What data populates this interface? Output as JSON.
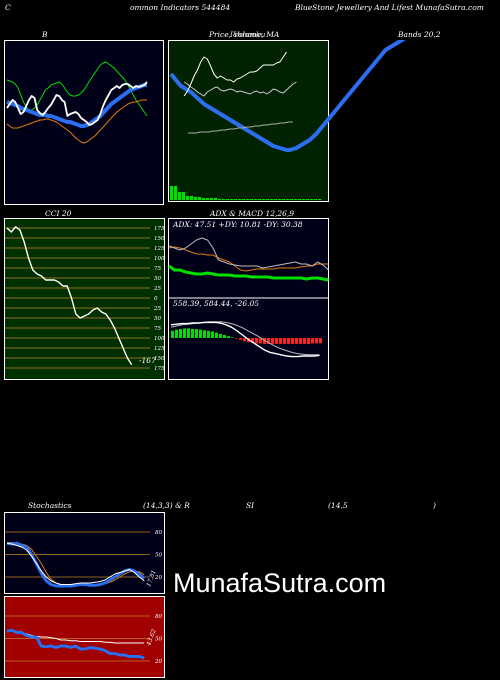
{
  "header": {
    "left": "C",
    "mid": "ommon  Indicators 544484",
    "right": "BlueStone  Jewellery And Lifest MunafaSutra.com"
  },
  "top_labels": {
    "b": "B",
    "price": "Price,  Volume,  MA",
    "price_overlay": "Ichimoku",
    "bands": "Bands 20,2"
  },
  "mid_labels": {
    "cci": "CCI 20",
    "adx": "ADX  & MACD 12,26,9"
  },
  "bottom_labels": {
    "stoch": "Stochastics",
    "params": "(14,3,3) & R",
    "si": "SI",
    "rsi_params": "(14,5",
    "close_paren": ")"
  },
  "watermark": "MunafaSutra.com",
  "colors": {
    "bg": "#000000",
    "navy": "#000018",
    "price_bg": "#002200",
    "cci_bg": "#003000",
    "rsi_bg": "#a00000",
    "blue": "#2b6ef0",
    "green": "#00e000",
    "orange": "#e07a10",
    "white": "#ffffff",
    "red": "#ff2020"
  },
  "chart_data": [
    {
      "type": "line",
      "name": "bollinger",
      "title": "B ... Bands 20,2",
      "series": [
        {
          "values": [
            40,
            41,
            42,
            44,
            48,
            55,
            62,
            67,
            70,
            70,
            68,
            65,
            60,
            55,
            50,
            48,
            45,
            44,
            43,
            42,
            44,
            48,
            52,
            55,
            56,
            56,
            55,
            53,
            50,
            46,
            41,
            37,
            33,
            29,
            25,
            23,
            22,
            24,
            26,
            28,
            31,
            34,
            37,
            40,
            45,
            50,
            55,
            60,
            64,
            68,
            72,
            76
          ]
        },
        {
          "values": [
            62,
            63,
            64,
            65,
            66,
            68,
            69,
            70,
            71,
            72,
            73,
            74,
            75,
            75,
            75,
            76,
            76,
            77,
            78,
            79,
            80,
            81,
            82,
            82,
            83,
            84,
            85,
            86,
            86,
            85,
            84,
            82,
            80,
            78,
            76,
            73,
            70,
            67,
            64,
            62,
            60,
            58,
            56,
            54,
            52,
            50,
            49,
            48,
            47,
            46,
            45,
            45
          ]
        },
        {
          "values": [
            84,
            86,
            88,
            88,
            88,
            87,
            86,
            85,
            84,
            83,
            82,
            81,
            80,
            80,
            79,
            79,
            80,
            81,
            82,
            84,
            86,
            88,
            90,
            92,
            95,
            98,
            100,
            102,
            103,
            102,
            100,
            98,
            96,
            93,
            90,
            87,
            84,
            81,
            78,
            75,
            72,
            70,
            68,
            66,
            64,
            63,
            62,
            62,
            61,
            60,
            60,
            60
          ]
        },
        {
          "values": [
            68,
            64,
            60,
            62,
            68,
            74,
            72,
            66,
            60,
            56,
            58,
            70,
            73,
            75,
            72,
            68,
            65,
            60,
            55,
            56,
            60,
            62,
            76,
            74,
            73,
            72,
            74,
            78,
            80,
            82,
            85,
            84,
            82,
            80,
            74,
            66,
            60,
            55,
            50,
            48,
            46,
            48,
            45,
            44,
            44,
            46,
            48,
            46,
            47,
            46,
            45,
            42
          ]
        }
      ]
    },
    {
      "type": "line",
      "name": "price-ma",
      "series": [
        {
          "values": [
            128,
            124,
            120,
            116,
            114,
            112,
            110,
            107,
            104,
            101,
            98,
            96,
            94,
            92,
            90,
            88,
            86,
            84,
            82,
            80,
            78,
            76,
            74,
            72,
            70,
            68,
            66,
            64,
            62,
            60,
            58,
            56,
            55,
            54,
            53,
            52,
            52,
            53,
            54,
            56,
            58,
            60,
            62,
            65,
            68,
            72,
            76,
            80,
            84,
            88,
            92,
            96,
            100,
            104,
            108,
            112,
            116,
            120,
            124,
            128,
            132,
            136,
            140,
            144,
            148,
            152,
            154,
            156,
            158,
            160,
            162,
            164,
            166
          ]
        },
        {
          "values": [
            null,
            null,
            null,
            null,
            120,
            118,
            115,
            113,
            110,
            108,
            106,
            110,
            112,
            114,
            115,
            112,
            111,
            112,
            113,
            112,
            110,
            111,
            110,
            109,
            108,
            110,
            111,
            109,
            110,
            108,
            110,
            113,
            112,
            110,
            109,
            112,
            115,
            118,
            120
          ]
        },
        {
          "values": [
            null,
            null,
            null,
            null,
            106,
            111,
            118,
            126,
            132,
            140,
            145,
            143,
            136,
            128,
            124,
            126,
            124,
            122,
            122,
            120,
            123,
            124,
            126,
            128,
            130,
            130,
            131,
            134,
            137,
            137,
            137,
            137,
            139,
            140,
            145,
            150
          ]
        },
        {
          "values": [
            null,
            null,
            null,
            null,
            69,
            69,
            69,
            70,
            70,
            70,
            71,
            71,
            72,
            72,
            73,
            73,
            74,
            74,
            75,
            75,
            76,
            76,
            77,
            77,
            78,
            78,
            79,
            79,
            80,
            80
          ]
        }
      ],
      "volume": [
        14,
        14,
        8,
        8,
        4,
        4,
        3,
        3,
        2,
        2,
        2,
        2,
        1,
        1,
        1,
        1,
        1,
        1,
        1,
        1,
        1,
        1,
        1,
        1,
        1,
        1,
        1,
        1,
        1,
        1,
        1,
        1,
        1,
        1,
        1,
        1,
        1,
        1
      ]
    },
    {
      "type": "line",
      "name": "cci",
      "title": "CCI 20",
      "ticks": [
        "175",
        "150",
        "125",
        "100",
        "75",
        "50",
        "25",
        "0",
        "25",
        "50",
        "75",
        "100",
        "125",
        "150",
        "175"
      ],
      "ylim": [
        -175,
        175
      ],
      "last_label": "-167",
      "values": [
        175,
        165,
        178,
        170,
        140,
        100,
        70,
        60,
        55,
        45,
        45,
        45,
        40,
        30,
        30,
        0,
        -40,
        -50,
        -45,
        -40,
        -30,
        -25,
        -35,
        -40,
        -55,
        -75,
        -100,
        -125,
        -150,
        -167
      ]
    },
    {
      "type": "line",
      "name": "adx-macd",
      "title": "ADX  & MACD 12,26,9",
      "readout": "ADX: 47.51  +DY: 10.81 -DY: 30.38",
      "macd_readout": "558.39,  584.44,  -26.05",
      "adx": [
        42,
        40,
        38,
        40,
        44,
        48,
        50,
        48,
        40,
        28,
        26,
        24,
        23,
        22,
        22,
        22,
        22,
        20,
        21,
        22,
        23,
        24,
        25,
        26,
        24,
        24,
        22,
        26,
        23,
        18
      ],
      "plus_di": [
        22,
        18,
        18,
        16,
        15,
        14,
        14,
        15,
        14,
        13,
        13,
        13,
        12,
        12,
        12,
        11,
        11,
        11,
        11,
        10,
        10,
        10,
        10,
        10,
        10,
        9,
        10,
        10,
        9,
        8
      ],
      "minus_di": [
        40,
        41,
        40,
        38,
        36,
        34,
        34,
        33,
        33,
        30,
        28,
        26,
        22,
        18,
        17,
        18,
        19,
        19,
        19,
        19,
        20,
        20,
        20,
        20,
        21,
        22,
        22,
        24,
        24,
        24
      ],
      "macd": [
        22,
        23,
        24,
        24,
        25,
        25,
        26,
        26,
        26,
        25,
        22,
        18,
        12,
        5,
        -2,
        -8,
        -14,
        -20,
        -24,
        -26,
        -28,
        -30,
        -31,
        -31,
        -30,
        -30,
        -30,
        -29
      ],
      "signal": [
        18,
        20,
        22,
        23,
        24,
        25,
        26,
        27,
        27,
        27,
        26,
        24,
        21,
        17,
        12,
        7,
        2,
        -4,
        -9,
        -14,
        -18,
        -21,
        -24,
        -26,
        -27,
        -28,
        -28,
        -28
      ],
      "histogram": [
        12,
        14,
        15,
        16,
        16,
        15,
        15,
        14,
        13,
        12,
        11,
        9,
        7,
        5,
        3,
        1,
        -1,
        -3,
        -5,
        -7,
        -8,
        -9,
        -9,
        -10,
        -10,
        -10,
        -10,
        -10,
        -10,
        -10,
        -10,
        -10,
        -10,
        -10,
        -10,
        -9,
        -9,
        -9
      ]
    },
    {
      "type": "line",
      "name": "stochastics",
      "title": "Stochastics (14,3,3)",
      "ticks": [
        "80",
        "50",
        "20"
      ],
      "ylim": [
        0,
        100
      ],
      "last_label": "17.81",
      "k": [
        65,
        64,
        65,
        62,
        60,
        50,
        38,
        25,
        15,
        10,
        8,
        8,
        8,
        8,
        9,
        10,
        10,
        9,
        9,
        10,
        12,
        16,
        20,
        24,
        28,
        30,
        28,
        24,
        18
      ],
      "d": [
        66,
        66,
        65,
        64,
        62,
        57,
        48,
        38,
        26,
        17,
        12,
        10,
        9,
        8,
        8,
        9,
        9,
        10,
        10,
        10,
        11,
        13,
        16,
        20,
        24,
        27,
        28,
        27,
        23
      ],
      "white": [
        65,
        64,
        62,
        60,
        56,
        48,
        38,
        28,
        20,
        15,
        12,
        10,
        10,
        10,
        11,
        12,
        12,
        12,
        13,
        14,
        16,
        20,
        24,
        26,
        28,
        30,
        26,
        20,
        15
      ]
    },
    {
      "type": "line",
      "name": "rsi",
      "title": "RSI (14,5)",
      "ticks": [
        "80",
        "50",
        "20"
      ],
      "ylim": [
        0,
        100
      ],
      "last_label": "43.62",
      "blue": [
        60,
        61,
        58,
        58,
        54,
        52,
        52,
        40,
        39,
        40,
        38,
        40,
        40,
        38,
        40,
        36,
        36,
        38,
        37,
        36,
        34,
        30,
        30,
        28,
        28,
        26,
        26,
        26,
        24
      ],
      "white": [
        60,
        60,
        58,
        57,
        56,
        54,
        53,
        52,
        52,
        51,
        50,
        48,
        48,
        47,
        47,
        46,
        46,
        46,
        46,
        46,
        45,
        45,
        44,
        44,
        44,
        44,
        44,
        44,
        44
      ]
    }
  ]
}
